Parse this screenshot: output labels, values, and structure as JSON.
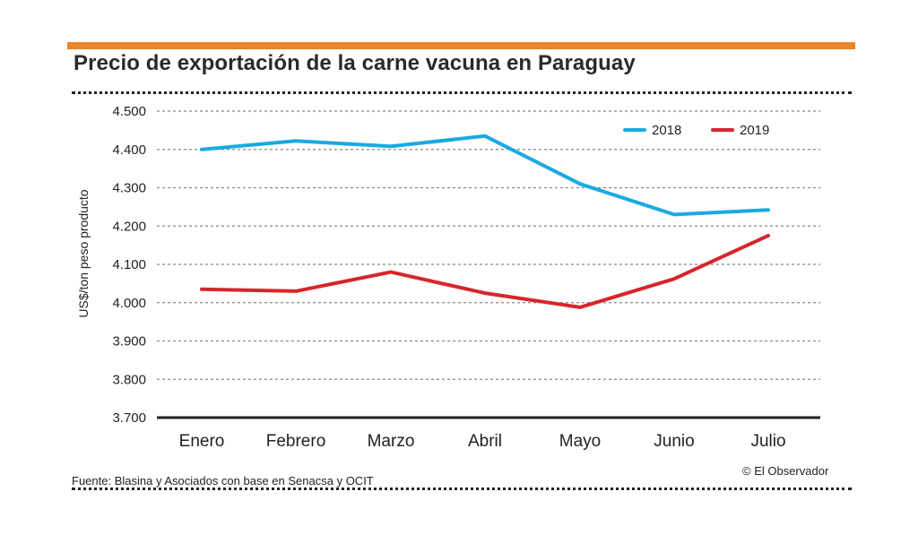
{
  "colors": {
    "accent": "#e8862a",
    "series_2018": "#1ba9e0",
    "series_2019": "#d7252b",
    "grid": "#888888",
    "axis": "#222222"
  },
  "title": "Precio de exportación de la carne vacuna en Paraguay",
  "source": "Fuente: Blasina y Asociados con base en Senacsa y OCIT",
  "credit": "© El Observador",
  "chart_data": {
    "type": "line",
    "title": "Precio de exportación de la carne vacuna en Paraguay",
    "xlabel": "",
    "ylabel": "US$/ton peso producto",
    "categories": [
      "Enero",
      "Febrero",
      "Marzo",
      "Abril",
      "Mayo",
      "Junio",
      "Julio"
    ],
    "ylim": [
      3700,
      4500
    ],
    "yticks": [
      3700,
      3800,
      3900,
      4000,
      4100,
      4200,
      4300,
      4400,
      4500
    ],
    "ytick_labels": [
      "3.700",
      "3.800",
      "3.900",
      "4.000",
      "4.100",
      "4.200",
      "4.300",
      "4.400",
      "4.500"
    ],
    "legend_position": "top-right",
    "series": [
      {
        "name": "2018",
        "color": "#1ba9e0",
        "values": [
          4400,
          4422,
          4408,
          4435,
          4310,
          4230,
          4242
        ]
      },
      {
        "name": "2019",
        "color": "#d7252b",
        "values": [
          4035,
          4030,
          4080,
          4025,
          3988,
          4062,
          4175
        ]
      }
    ]
  }
}
